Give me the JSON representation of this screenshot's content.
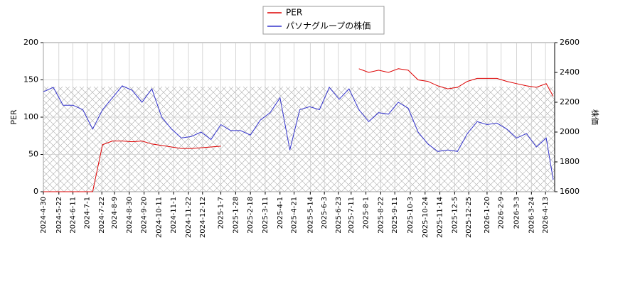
{
  "chart_data": {
    "type": "line",
    "ylabel": "PER",
    "y2label": "株価",
    "xlim": [
      "2024-4-30",
      "2026-4-26"
    ],
    "xticks": [
      "2024-4-30",
      "2024-5-22",
      "2024-6-11",
      "2024-7-1",
      "2024-7-22",
      "2024-8-9",
      "2024-8-30",
      "2024-9-20",
      "2024-10-11",
      "2024-11-1",
      "2024-11-22",
      "2024-12-12",
      "2025-1-7",
      "2025-1-28",
      "2025-2-18",
      "2025-3-11",
      "2025-4-1",
      "2025-4-21",
      "2025-5-14",
      "2025-6-3",
      "2025-6-23",
      "2025-7-11",
      "2025-8-1",
      "2025-8-22",
      "2025-9-11",
      "2025-10-3",
      "2025-10-24",
      "2025-11-14",
      "2025-12-5",
      "2025-12-25",
      "2026-1-20",
      "2026-2-9",
      "2026-3-3",
      "2026-3-24",
      "2026-4-13"
    ],
    "ylim": [
      0,
      200
    ],
    "yticks": [
      0,
      50,
      100,
      150,
      200
    ],
    "y2lim": [
      1600,
      2600
    ],
    "y2ticks": [
      1600,
      1800,
      2000,
      2200,
      2400,
      2600
    ],
    "grid": true,
    "legend": "top",
    "x": [
      "2024-4-30",
      "2024-5-14",
      "2024-5-28",
      "2024-6-11",
      "2024-6-25",
      "2024-7-9",
      "2024-7-23",
      "2024-8-6",
      "2024-8-20",
      "2024-9-3",
      "2024-9-17",
      "2024-10-1",
      "2024-10-15",
      "2024-10-29",
      "2024-11-12",
      "2024-11-26",
      "2024-12-10",
      "2024-12-24",
      "2025-1-7",
      "2025-1-21",
      "2025-2-4",
      "2025-2-18",
      "2025-3-4",
      "2025-3-18",
      "2025-4-1",
      "2025-4-15",
      "2025-4-29",
      "2025-5-13",
      "2025-5-27",
      "2025-6-10",
      "2025-6-24",
      "2025-7-8",
      "2025-7-22",
      "2025-8-5",
      "2025-8-19",
      "2025-9-2",
      "2025-9-16",
      "2025-9-30",
      "2025-10-14",
      "2025-10-28",
      "2025-11-11",
      "2025-11-25",
      "2025-12-9",
      "2025-12-23",
      "2026-1-6",
      "2026-1-20",
      "2026-2-3",
      "2026-2-17",
      "2026-3-3",
      "2026-3-17",
      "2026-3-31",
      "2026-4-14",
      "2026-4-24"
    ],
    "series": [
      {
        "name": "PER",
        "color": "#dd0000",
        "axis": "y",
        "values": [
          0,
          0,
          0,
          0,
          0,
          0,
          63,
          68,
          68,
          67,
          68,
          64,
          62,
          60,
          58,
          58,
          59,
          60,
          61,
          null,
          null,
          null,
          null,
          null,
          null,
          null,
          null,
          null,
          null,
          null,
          null,
          null,
          165,
          160,
          163,
          160,
          165,
          163,
          150,
          148,
          142,
          138,
          140,
          148,
          152,
          152,
          152,
          148,
          145,
          142,
          140,
          145,
          128
        ]
      },
      {
        "name": "パソナグループの株価",
        "color": "#3333cc",
        "axis": "y2",
        "values": [
          2270,
          2300,
          2180,
          2180,
          2150,
          2020,
          2150,
          2230,
          2310,
          2280,
          2200,
          2290,
          2100,
          2020,
          1960,
          1970,
          2000,
          1950,
          2050,
          2010,
          2010,
          1980,
          2080,
          2130,
          2230,
          1880,
          2150,
          2170,
          2150,
          2300,
          2220,
          2290,
          2150,
          2070,
          2130,
          2120,
          2200,
          2160,
          2000,
          1920,
          1870,
          1880,
          1870,
          1990,
          2070,
          2050,
          2060,
          2020,
          1960,
          1990,
          1900,
          1960,
          1680
        ]
      }
    ]
  }
}
